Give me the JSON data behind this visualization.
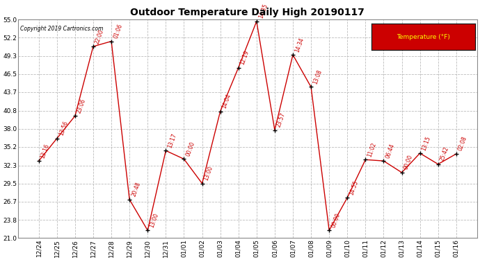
{
  "title": "Outdoor Temperature Daily High 20190117",
  "copyright": "Copyright 2019 Cartronics.com",
  "legend_label": "Temperature (°F)",
  "x_labels": [
    "12/24",
    "12/25",
    "12/26",
    "12/27",
    "12/28",
    "12/29",
    "12/30",
    "12/31",
    "01/01",
    "01/02",
    "01/03",
    "01/04",
    "01/05",
    "01/06",
    "01/07",
    "01/08",
    "01/09",
    "01/10",
    "01/11",
    "01/12",
    "01/13",
    "01/14",
    "01/15",
    "01/16"
  ],
  "y_values": [
    33.0,
    36.5,
    40.0,
    50.8,
    51.6,
    27.0,
    22.2,
    34.6,
    33.3,
    29.5,
    40.7,
    47.5,
    54.7,
    37.8,
    49.5,
    44.5,
    22.2,
    27.3,
    33.2,
    33.0,
    31.2,
    34.2,
    32.5,
    34.1
  ],
  "time_labels": [
    "13:16",
    "13:56",
    "23:06",
    "22:00",
    "01:06",
    "20:48",
    "13:00",
    "13:17",
    "00:00",
    "13:00",
    "14:04",
    "12:19",
    "14:35",
    "23:57",
    "14:34",
    "13:08",
    "00:00",
    "14:55",
    "11:02",
    "06:44",
    "00:00",
    "13:15",
    "25:42",
    "02:08"
  ],
  "ylim": [
    21.0,
    55.0
  ],
  "yticks": [
    21.0,
    23.8,
    26.7,
    29.5,
    32.3,
    35.2,
    38.0,
    40.8,
    43.7,
    46.5,
    49.3,
    52.2,
    55.0
  ],
  "line_color": "#cc0000",
  "marker_color": "#000000",
  "bg_color": "#ffffff",
  "grid_color": "#bbbbbb",
  "legend_bg": "#cc0000",
  "legend_text_color": "#ffff00"
}
